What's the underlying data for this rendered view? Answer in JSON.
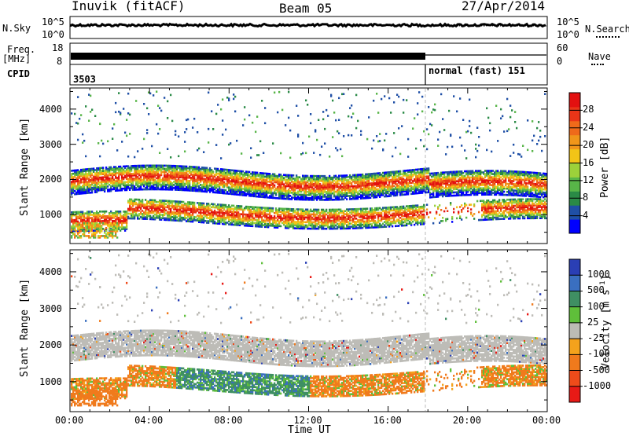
{
  "header": {
    "station": "Inuvik (fitACF)",
    "beam": "Beam 05",
    "date": "27/Apr/2014"
  },
  "strips": {
    "nsky_label": "N.Sky",
    "nsearch_label": "N.Search",
    "nsky_ticks": [
      "10^5",
      "10^0"
    ],
    "nsearch_ticks": [
      "10^5",
      "10^0"
    ],
    "freq_label_1": "Freq.",
    "freq_label_2": "[MHz]",
    "freq_ticks": [
      "18",
      "8"
    ],
    "nave_label": "Nave",
    "nave_ticks": [
      "60",
      "0"
    ],
    "cpid_label": "CPID",
    "cpid_1": "3503",
    "cpid_2": "normal (fast) 151"
  },
  "colors": {
    "power": [
      "#0000ff",
      "#1f4fa6",
      "#2a8a46",
      "#58b548",
      "#9cd13a",
      "#f2c417",
      "#f0961a",
      "#ef6a1a",
      "#ea3518",
      "#e31010"
    ],
    "velocity": [
      "#2a3fb5",
      "#3a6fc0",
      "#3f8f63",
      "#5fbf3a",
      "#bcbcb4",
      "#f4a21c",
      "#f07a1c",
      "#ef4b1a",
      "#e81a16"
    ],
    "ground_scatter": "#bdbcb7"
  },
  "chart_data": [
    {
      "type": "heatmap",
      "title": "",
      "xlabel": "",
      "ylabel": "Slant Range [km]",
      "xlim": [
        "00:00",
        "00:00"
      ],
      "ylim": [
        180,
        4600
      ],
      "x_ticks": [
        "00:00",
        "04:00",
        "08:00",
        "12:00",
        "16:00",
        "20:00",
        "00:00"
      ],
      "y_ticks": [
        1000,
        2000,
        3000,
        4000
      ],
      "colorbar_label": "Power [dB]",
      "colorbar_ticks": [
        4,
        8,
        12,
        16,
        20,
        24,
        28
      ],
      "colorbar_range": [
        0,
        32
      ]
    },
    {
      "type": "heatmap",
      "title": "",
      "xlabel": "Time UT",
      "ylabel": "Slant Range [km]",
      "xlim": [
        "00:00",
        "00:00"
      ],
      "ylim": [
        180,
        4600
      ],
      "x_ticks": [
        "00:00",
        "04:00",
        "08:00",
        "12:00",
        "16:00",
        "20:00",
        "00:00"
      ],
      "y_ticks": [
        1000,
        2000,
        3000,
        4000
      ],
      "colorbar_label": "Velocity [m s^-1]",
      "colorbar_ticks": [
        "1000",
        "500",
        "100",
        "25",
        "-25",
        "-100",
        "-500",
        "-1000"
      ]
    }
  ]
}
